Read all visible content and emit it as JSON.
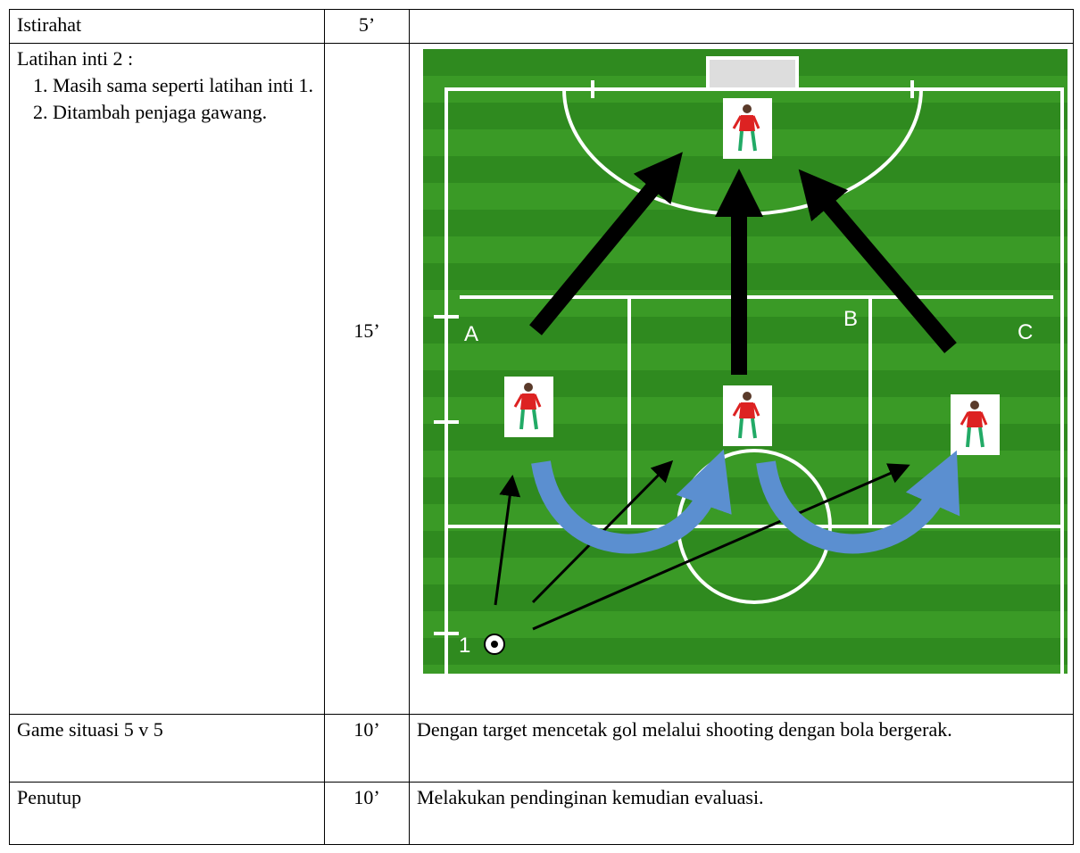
{
  "table": {
    "rows": [
      {
        "activity": "Istirahat",
        "duration": "5’"
      },
      {
        "activity": {
          "title": "Latihan inti 2 :",
          "items": [
            "Masih sama seperti latihan inti 1.",
            "Ditambah penjaga gawang."
          ]
        },
        "duration": "15’",
        "diagram": {
          "labels": [
            "A",
            "B",
            "C",
            "1"
          ]
        }
      },
      {
        "activity": "Game situasi 5 v 5",
        "duration": "10’",
        "description": "Dengan target mencetak gol melalui shooting dengan bola bergerak."
      },
      {
        "activity": "Penutup",
        "duration": "10’",
        "description": "Melakukan pendinginan kemudian evaluasi."
      }
    ]
  }
}
